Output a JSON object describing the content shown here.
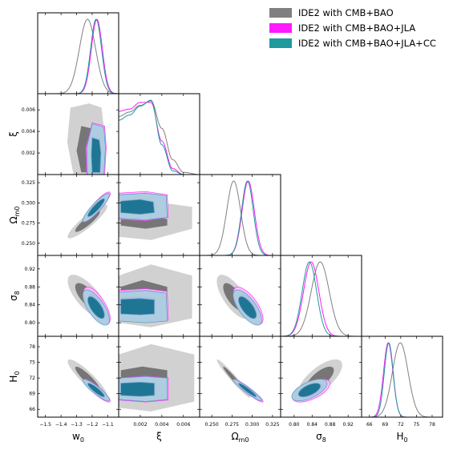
{
  "chart_data": {
    "type": "triangle_corner_plot",
    "parameters": [
      {
        "key": "w0",
        "label_base": "w",
        "label_sub": "0",
        "range": [
          -1.55,
          -1.03
        ],
        "ticks": [
          -1.5,
          -1.4,
          -1.3,
          -1.2,
          -1.1
        ],
        "tick_labels": [
          "−1.5",
          "−1.4",
          "−1.3",
          "−1.2",
          "−1.1"
        ]
      },
      {
        "key": "xi",
        "label_base": "ξ",
        "label_sub": "",
        "range": [
          0.0,
          0.0075
        ],
        "ticks": [
          0.002,
          0.004,
          0.006
        ],
        "tick_labels": [
          "0.002",
          "0.004",
          "0.006"
        ]
      },
      {
        "key": "Om0",
        "label_base": "Ω",
        "label_sub": "m0",
        "range": [
          0.235,
          0.335
        ],
        "ticks": [
          0.25,
          0.275,
          0.3,
          0.325
        ],
        "tick_labels": [
          "0.250",
          "0.275",
          "0.300",
          "0.325"
        ]
      },
      {
        "key": "s8",
        "label_base": "σ",
        "label_sub": "8",
        "range": [
          0.77,
          0.95
        ],
        "ticks": [
          0.8,
          0.84,
          0.88,
          0.92
        ],
        "tick_labels": [
          "0.80",
          "0.84",
          "0.88",
          "0.92"
        ]
      },
      {
        "key": "H0",
        "label_base": "H",
        "label_sub": "0",
        "range": [
          64.5,
          80.0
        ],
        "ticks": [
          66,
          69,
          72,
          75,
          78
        ],
        "tick_labels": [
          "66",
          "69",
          "72",
          "75",
          "78"
        ]
      }
    ],
    "series": [
      {
        "name": "IDE2 with CMB+BAO",
        "color": "#808080",
        "mean": [
          -1.23,
          0.0027,
          0.277,
          0.858,
          71.9
        ],
        "sigma": [
          0.052,
          0.0014,
          0.0085,
          0.02,
          1.5
        ],
        "marginal_1d": {
          "xi": [
            [
              0.0,
              0.78
            ],
            [
              0.001,
              0.84
            ],
            [
              0.002,
              0.93
            ],
            [
              0.003,
              0.99
            ],
            [
              0.004,
              0.62
            ],
            [
              0.005,
              0.2
            ],
            [
              0.006,
              0.03
            ],
            [
              0.0075,
              0.0
            ]
          ]
        },
        "contour_68": {
          "xi|w0": [
            [
              -1.27,
              0.0002
            ],
            [
              -1.21,
              0.0002
            ],
            [
              -1.2,
              0.002
            ],
            [
              -1.21,
              0.0043
            ],
            [
              -1.27,
              0.0045
            ],
            [
              -1.3,
              0.0022
            ]
          ],
          "xi|Om0": [
            [
              0.272,
              0.0002
            ],
            [
              0.28,
              0.0002
            ],
            [
              0.283,
              0.0025
            ],
            [
              0.28,
              0.0045
            ],
            [
              0.272,
              0.0045
            ],
            [
              0.268,
              0.0025
            ]
          ],
          "xi|s8": [
            [
              0.83,
              0.0002
            ],
            [
              0.88,
              0.0002
            ],
            [
              0.895,
              0.0022
            ],
            [
              0.88,
              0.0045
            ],
            [
              0.83,
              0.0045
            ],
            [
              0.815,
              0.0022
            ]
          ],
          "xi|H0": [
            [
              69.5,
              0.0002
            ],
            [
              73.5,
              0.0002
            ],
            [
              74.2,
              0.0022
            ],
            [
              73.5,
              0.0045
            ],
            [
              69.5,
              0.0045
            ],
            [
              68.8,
              0.0022
            ]
          ]
        },
        "contour_95": {
          "xi|w0": [
            [
              -1.32,
              0.0
            ],
            [
              -1.14,
              0.0
            ],
            [
              -1.11,
              0.0025
            ],
            [
              -1.14,
              0.0062
            ],
            [
              -1.22,
              0.0066
            ],
            [
              -1.34,
              0.0062
            ],
            [
              -1.36,
              0.003
            ]
          ],
          "xi|Om0": [
            [
              0.258,
              0.0
            ],
            [
              0.298,
              0.0
            ],
            [
              0.302,
              0.003
            ],
            [
              0.295,
              0.0068
            ],
            [
              0.268,
              0.0068
            ],
            [
              0.254,
              0.003
            ]
          ],
          "xi|s8": [
            [
              0.8,
              0.0
            ],
            [
              0.905,
              0.0
            ],
            [
              0.93,
              0.003
            ],
            [
              0.905,
              0.0068
            ],
            [
              0.81,
              0.0068
            ],
            [
              0.79,
              0.003
            ]
          ],
          "xi|H0": [
            [
              66.3,
              0.0
            ],
            [
              76.5,
              0.0
            ],
            [
              78.5,
              0.003
            ],
            [
              76.5,
              0.007
            ],
            [
              67.5,
              0.007
            ],
            [
              65.6,
              0.003
            ]
          ]
        },
        "corr": {
          "w0|Om0": 0.9,
          "w0|s8": -0.72,
          "w0|H0": -0.9,
          "Om0|s8": -0.7,
          "Om0|H0": -0.97,
          "s8|H0": 0.7
        }
      },
      {
        "name": "IDE2 with CMB+BAO+JLA",
        "color": "#ff1aff",
        "mean": [
          -1.17,
          0.0021,
          0.295,
          0.838,
          69.6
        ],
        "sigma": [
          0.035,
          0.0013,
          0.0075,
          0.017,
          0.9
        ],
        "marginal_1d": {
          "xi": [
            [
              0.0,
              0.85
            ],
            [
              0.001,
              0.88
            ],
            [
              0.002,
              0.97
            ],
            [
              0.003,
              0.97
            ],
            [
              0.004,
              0.45
            ],
            [
              0.005,
              0.08
            ],
            [
              0.006,
              0.0
            ],
            [
              0.0075,
              0.0
            ]
          ]
        },
        "contour_68": {
          "xi|w0": [
            [
              -1.2,
              0.0002
            ],
            [
              -1.145,
              0.0002
            ],
            [
              -1.14,
              0.002
            ],
            [
              -1.15,
              0.0033
            ],
            [
              -1.2,
              0.0035
            ],
            [
              -1.205,
              0.0018
            ]
          ],
          "xi|Om0": [
            [
              0.288,
              0.0002
            ],
            [
              0.303,
              0.0002
            ],
            [
              0.305,
              0.002
            ],
            [
              0.302,
              0.0033
            ],
            [
              0.288,
              0.0034
            ],
            [
              0.286,
              0.002
            ]
          ],
          "xi|s8": [
            [
              0.822,
              0.0002
            ],
            [
              0.856,
              0.0002
            ],
            [
              0.858,
              0.002
            ],
            [
              0.855,
              0.0034
            ],
            [
              0.822,
              0.0034
            ],
            [
              0.82,
              0.002
            ]
          ],
          "xi|H0": [
            [
              68.6,
              0.0002
            ],
            [
              71.0,
              0.0002
            ],
            [
              71.2,
              0.002
            ],
            [
              71.0,
              0.0034
            ],
            [
              68.6,
              0.0034
            ],
            [
              68.4,
              0.002
            ]
          ]
        },
        "contour_95": {
          "xi|w0": [
            [
              -1.235,
              0.0
            ],
            [
              -1.12,
              0.0
            ],
            [
              -1.11,
              0.0025
            ],
            [
              -1.12,
              0.0045
            ],
            [
              -1.2,
              0.0048
            ],
            [
              -1.24,
              0.0025
            ]
          ],
          "xi|Om0": [
            [
              0.28,
              0.0
            ],
            [
              0.312,
              0.0
            ],
            [
              0.314,
              0.0025
            ],
            [
              0.31,
              0.0045
            ],
            [
              0.282,
              0.0046
            ],
            [
              0.278,
              0.0025
            ]
          ],
          "xi|s8": [
            [
              0.806,
              0.0
            ],
            [
              0.872,
              0.0
            ],
            [
              0.876,
              0.0025
            ],
            [
              0.87,
              0.0045
            ],
            [
              0.806,
              0.0046
            ],
            [
              0.802,
              0.0025
            ]
          ],
          "xi|H0": [
            [
              67.8,
              0.0
            ],
            [
              72.0,
              0.0
            ],
            [
              72.4,
              0.0025
            ],
            [
              72.0,
              0.0046
            ],
            [
              67.8,
              0.0046
            ],
            [
              67.4,
              0.0025
            ]
          ]
        },
        "corr": {
          "w0|Om0": 0.9,
          "w0|s8": -0.7,
          "w0|H0": -0.9,
          "Om0|s8": -0.7,
          "Om0|H0": -0.95,
          "s8|H0": 0.6
        }
      },
      {
        "name": "IDE2 with CMB+BAO+JLA+CC",
        "color": "#1e9a9d",
        "mean": [
          -1.175,
          0.0021,
          0.294,
          0.834,
          69.7
        ],
        "sigma": [
          0.035,
          0.0013,
          0.0072,
          0.016,
          0.85
        ],
        "marginal_1d": {
          "xi": [
            [
              0.0,
              0.73
            ],
            [
              0.001,
              0.8
            ],
            [
              0.002,
              0.92
            ],
            [
              0.003,
              1.0
            ],
            [
              0.004,
              0.4
            ],
            [
              0.005,
              0.05
            ],
            [
              0.006,
              0.0
            ],
            [
              0.0075,
              0.0
            ]
          ]
        },
        "contour_68": {
          "xi|w0": [
            [
              -1.2,
              0.0002
            ],
            [
              -1.15,
              0.0002
            ],
            [
              -1.145,
              0.002
            ],
            [
              -1.155,
              0.0032
            ],
            [
              -1.2,
              0.0034
            ],
            [
              -1.205,
              0.0018
            ]
          ],
          "xi|Om0": [
            [
              0.288,
              0.0002
            ],
            [
              0.302,
              0.0002
            ],
            [
              0.304,
              0.002
            ],
            [
              0.301,
              0.0032
            ],
            [
              0.288,
              0.0033
            ],
            [
              0.286,
              0.002
            ]
          ],
          "xi|s8": [
            [
              0.82,
              0.0002
            ],
            [
              0.852,
              0.0002
            ],
            [
              0.854,
              0.002
            ],
            [
              0.851,
              0.0033
            ],
            [
              0.82,
              0.0033
            ],
            [
              0.818,
              0.002
            ]
          ],
          "xi|H0": [
            [
              68.7,
              0.0002
            ],
            [
              71.0,
              0.0002
            ],
            [
              71.2,
              0.002
            ],
            [
              71.0,
              0.0033
            ],
            [
              68.7,
              0.0033
            ],
            [
              68.5,
              0.002
            ]
          ]
        },
        "contour_95": {
          "xi|w0": [
            [
              -1.23,
              0.0
            ],
            [
              -1.125,
              0.0
            ],
            [
              -1.115,
              0.0025
            ],
            [
              -1.125,
              0.0044
            ],
            [
              -1.2,
              0.0047
            ],
            [
              -1.235,
              0.0025
            ]
          ],
          "xi|Om0": [
            [
              0.281,
              0.0
            ],
            [
              0.31,
              0.0
            ],
            [
              0.312,
              0.0025
            ],
            [
              0.309,
              0.0044
            ],
            [
              0.282,
              0.0045
            ],
            [
              0.279,
              0.0025
            ]
          ],
          "xi|s8": [
            [
              0.804,
              0.0
            ],
            [
              0.868,
              0.0
            ],
            [
              0.872,
              0.0025
            ],
            [
              0.866,
              0.0044
            ],
            [
              0.804,
              0.0045
            ],
            [
              0.8,
              0.0025
            ]
          ],
          "xi|H0": [
            [
              67.9,
              0.0
            ],
            [
              72.0,
              0.0
            ],
            [
              72.3,
              0.0025
            ],
            [
              72.0,
              0.0045
            ],
            [
              67.9,
              0.0045
            ],
            [
              67.5,
              0.0025
            ]
          ]
        },
        "corr": {
          "w0|Om0": 0.9,
          "w0|s8": -0.7,
          "w0|H0": -0.9,
          "Om0|s8": -0.7,
          "Om0|H0": -0.95,
          "s8|H0": 0.6
        }
      }
    ],
    "legend": {
      "position": "top-right",
      "entries": [
        "IDE2 with CMB+BAO",
        "IDE2 with CMB+BAO+JLA",
        "IDE2 with CMB+BAO+JLA+CC"
      ]
    },
    "grid": false
  }
}
